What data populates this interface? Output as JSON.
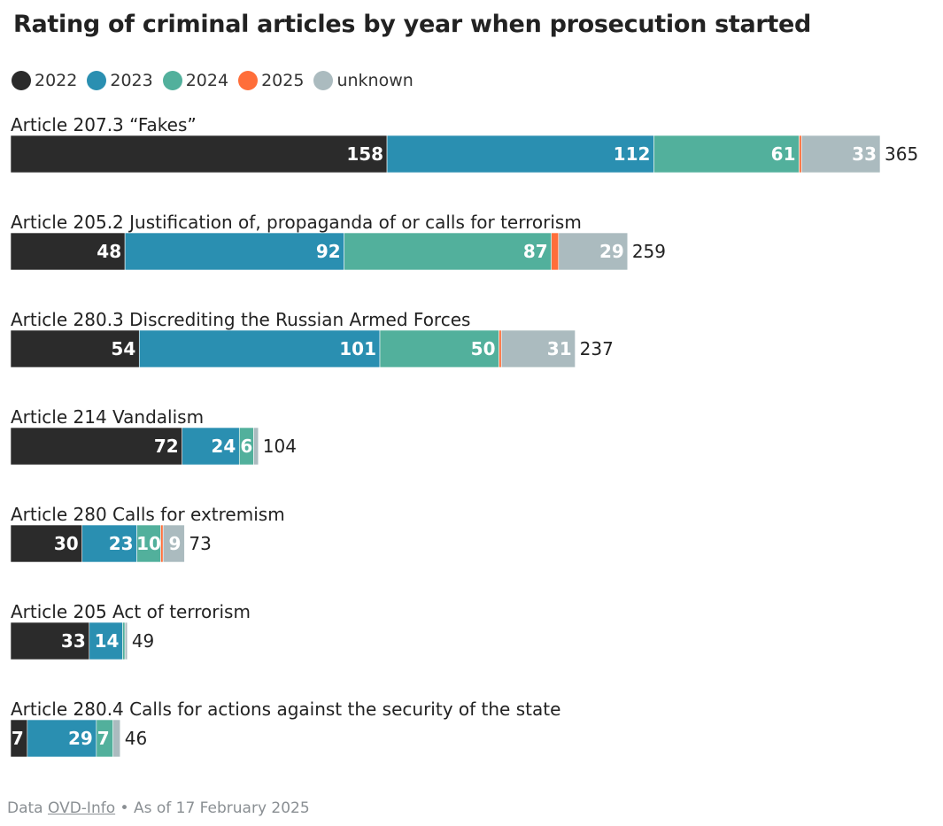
{
  "chart_data": {
    "type": "bar",
    "orientation": "horizontal",
    "stacked": true,
    "title": "Rating of criminal articles by year when prosecution started",
    "legend_position": "top-left",
    "grid": false,
    "categories": [
      "Article 207.3 “Fakes”",
      "Article 205.2 Justification of, propaganda of or calls for terrorism",
      "Article 280.3 Discrediting the Russian Armed Forces",
      "Article 214 Vandalism",
      "Article 280 Calls for extremism",
      "Article 205 Act of terrorism",
      "Article 280.4 Calls for actions against the security of the state"
    ],
    "series": [
      {
        "name": "2022",
        "color": "#2b2b2b",
        "values": [
          158,
          48,
          54,
          72,
          30,
          33,
          7
        ]
      },
      {
        "name": "2023",
        "color": "#2a8fb1",
        "values": [
          112,
          92,
          101,
          24,
          23,
          14,
          29
        ]
      },
      {
        "name": "2024",
        "color": "#52b09c",
        "values": [
          61,
          87,
          50,
          6,
          10,
          1,
          7
        ]
      },
      {
        "name": "2025",
        "color": "#ff6e3a",
        "values": [
          1,
          3,
          1,
          0,
          1,
          0,
          0
        ]
      },
      {
        "name": "unknown",
        "color": "#abbbbf",
        "values": [
          33,
          29,
          31,
          2,
          9,
          1,
          3
        ]
      }
    ],
    "totals": [
      365,
      259,
      237,
      104,
      73,
      49,
      46
    ],
    "xlim": [
      0,
      365
    ]
  },
  "footer": {
    "prefix": "Data",
    "source": "OVD-Info",
    "date": "• As of 17 February 2025"
  }
}
